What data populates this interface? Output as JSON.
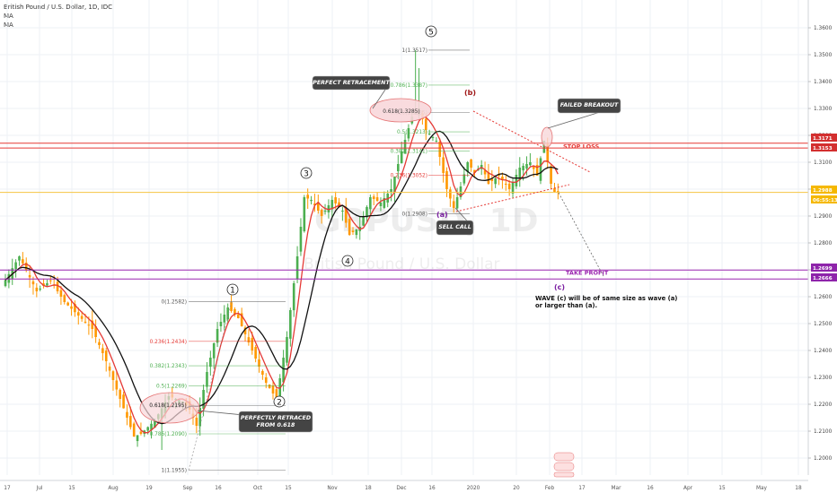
{
  "header": {
    "title": "British Pound / U.S. Dollar, 1D, IDC",
    "ma1": "MA",
    "ma2": "MA"
  },
  "watermark": {
    "symbol": "GBPUSD, 1D",
    "name": "British Pound / U.S. Dollar"
  },
  "chart_data": {
    "type": "candlestick",
    "yaxis_ticks": [
      "1.3600",
      "1.3500",
      "1.3400",
      "1.3300",
      "1.3200",
      "1.3100",
      "1.3000",
      "1.2900",
      "1.2800",
      "1.2700",
      "1.2600",
      "1.2500",
      "1.2400",
      "1.2300",
      "1.2200",
      "1.2100",
      "1.2000"
    ],
    "xaxis_ticks": [
      "17",
      "Jul",
      "15",
      "Aug",
      "19",
      "Sep",
      "16",
      "Oct",
      "15",
      "Nov",
      "18",
      "Dec",
      "16",
      "2020",
      "20",
      "Feb",
      "17",
      "Mar",
      "16",
      "Apr",
      "15",
      "May",
      "18"
    ],
    "price_tags": [
      {
        "label": "1.3171",
        "color": "#d32f2f"
      },
      {
        "label": "1.3153",
        "color": "#d32f2f"
      },
      {
        "label": "1.2988",
        "color": "#f5b800"
      },
      {
        "label": "06:55:13",
        "color": "#f5b800"
      },
      {
        "label": "1.2699",
        "color": "#8e24aa"
      },
      {
        "label": "1.2666",
        "color": "#8e24aa"
      }
    ],
    "horizontal_levels": [
      {
        "price": 1.3171,
        "color": "#e53935",
        "label": "STOP LOSS"
      },
      {
        "price": 1.3153,
        "color": "#e53935",
        "label": ""
      },
      {
        "price": 1.2988,
        "color": "#f5c542",
        "label": ""
      },
      {
        "price": 1.2699,
        "color": "#9c27b0",
        "label": "TAKE PROFIT"
      },
      {
        "price": 1.2666,
        "color": "#9c27b0",
        "label": ""
      }
    ],
    "fib_levels_1": [
      {
        "label": "0(1.2582)",
        "price": 1.2582,
        "color": "#555555"
      },
      {
        "label": "0.236(1.2434)",
        "price": 1.2434,
        "color": "#e53935"
      },
      {
        "label": "0.382(1.2343)",
        "price": 1.2343,
        "color": "#4caf50"
      },
      {
        "label": "0.5(1.2269)",
        "price": 1.2269,
        "color": "#4caf50"
      },
      {
        "label": "0.618(1.2195)",
        "price": 1.2195,
        "color": "#555555"
      },
      {
        "label": "0.786(1.2090)",
        "price": 1.209,
        "color": "#4caf50"
      },
      {
        "label": "1(1.1955)",
        "price": 1.1955,
        "color": "#555555"
      }
    ],
    "fib_levels_2": [
      {
        "label": "1(1.3517)",
        "price": 1.3517,
        "color": "#555555"
      },
      {
        "label": "0.786(1.3387)",
        "price": 1.3387,
        "color": "#4caf50"
      },
      {
        "label": "0.618(1.3285)",
        "price": 1.3285,
        "color": "#555555"
      },
      {
        "label": "0.5(1.3213)",
        "price": 1.3213,
        "color": "#4caf50"
      },
      {
        "label": "0.382(1.3141)",
        "price": 1.3141,
        "color": "#4caf50"
      },
      {
        "label": "0.236(1.3052)",
        "price": 1.3052,
        "color": "#e53935"
      },
      {
        "label": "0(1.2908)",
        "price": 1.2908,
        "color": "#555555"
      }
    ],
    "wave_labels": [
      "1",
      "2",
      "3",
      "4",
      "5"
    ],
    "corrective_labels": [
      "(a)",
      "(b)",
      "(c)"
    ],
    "callouts": [
      "PERFECT RETRACEMENT",
      "FAILED BREAKOUT",
      "SELL CALL",
      "PERFECTLY RETRACED FROM 0.618"
    ],
    "note": [
      "WAVE (c) will be of same size as wave (a)",
      "or larger than (a)."
    ],
    "ylim": [
      1.195,
      1.365
    ],
    "grid": true
  }
}
